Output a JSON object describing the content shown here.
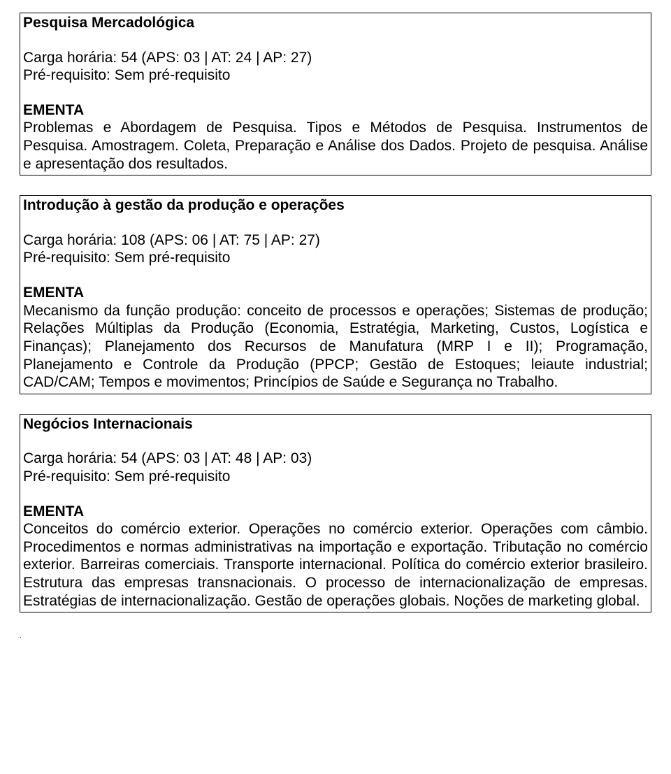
{
  "courses": [
    {
      "title": "Pesquisa Mercadológica",
      "carga": "Carga horária: 54 (APS: 03 | AT: 24 | AP: 27)",
      "prereq": "Pré-requisito: Sem pré-requisito",
      "ementa_label": "EMENTA",
      "ementa_text": "Problemas e Abordagem de Pesquisa. Tipos e Métodos de Pesquisa. Instrumentos de Pesquisa. Amostragem. Coleta, Preparação e Análise dos Dados. Projeto de pesquisa. Análise e apresentação dos resultados."
    },
    {
      "title": "Introdução à gestão da produção e operações",
      "carga": "Carga horária: 108 (APS: 06 | AT: 75 | AP: 27)",
      "prereq": "Pré-requisito: Sem pré-requisito",
      "ementa_label": "EMENTA",
      "ementa_text": "Mecanismo da função produção: conceito de processos e operações; Sistemas de produção; Relações Múltiplas da Produção (Economia, Estratégia, Marketing, Custos, Logística e Finanças); Planejamento dos Recursos de Manufatura (MRP I e II); Programação, Planejamento e Controle da Produção (PPCP; Gestão de Estoques; leiaute industrial; CAD/CAM; Tempos e movimentos; Princípios de Saúde e  Segurança no Trabalho."
    },
    {
      "title": "Negócios Internacionais",
      "carga": "Carga horária: 54 (APS: 03 | AT: 48 | AP: 03)",
      "prereq": "Pré-requisito: Sem pré-requisito",
      "ementa_label": "EMENTA",
      "ementa_text": "Conceitos do comércio exterior. Operações no comércio exterior. Operações com câmbio. Procedimentos e normas administrativas na importação e exportação. Tributação no comércio exterior. Barreiras comerciais. Transporte internacional. Política do comércio exterior brasileiro. Estrutura das empresas transnacionais. O processo de internacionalização de empresas. Estratégias de internacionalização. Gestão de operações globais. Noções de marketing global."
    }
  ],
  "trailing_dot": "."
}
